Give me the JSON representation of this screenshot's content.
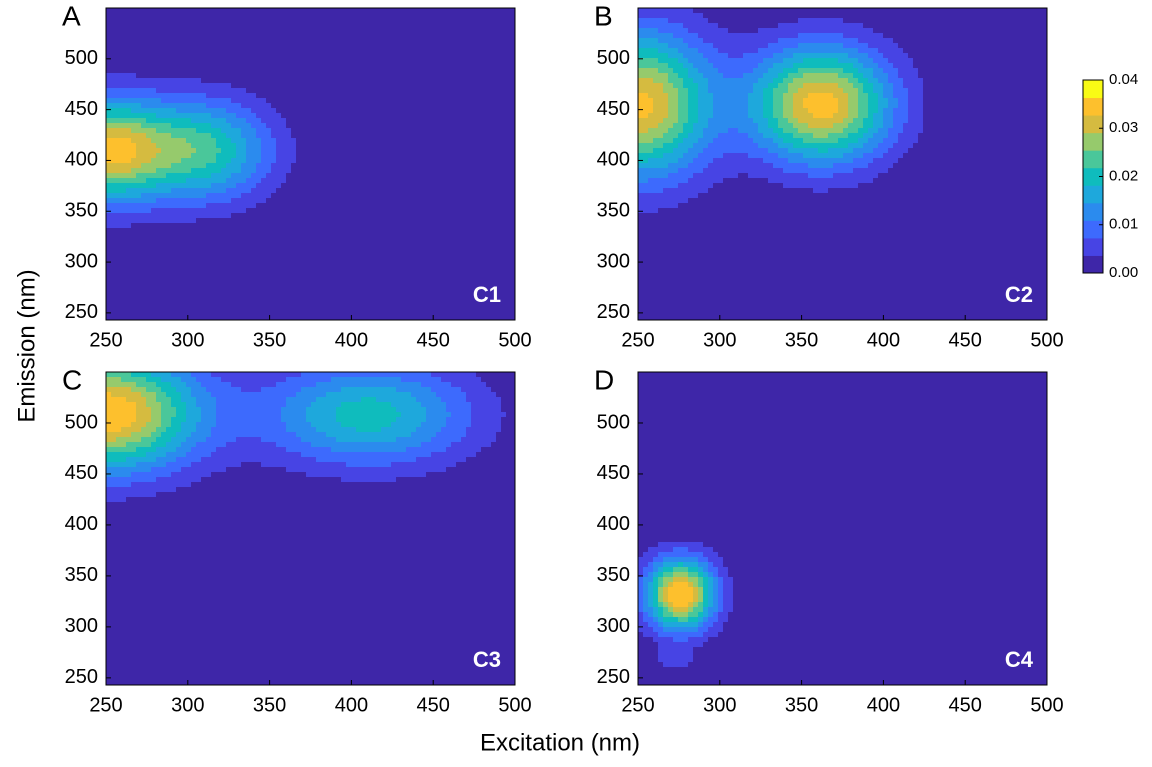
{
  "figure": {
    "ylabel": "Emission (nm)",
    "xlabel": "Excitation (nm)",
    "colorbar": {
      "lim": [
        0,
        0.04
      ],
      "ticks": [
        {
          "value": 0,
          "label": "0.00"
        },
        {
          "value": 0.01,
          "label": "0.01"
        },
        {
          "value": 0.02,
          "label": "0.02"
        },
        {
          "value": 0.03,
          "label": "0.03"
        },
        {
          "value": 0.04,
          "label": "0.04"
        }
      ],
      "colors": [
        "#3e26a8",
        "#4744e4",
        "#3d6afd",
        "#2b8bee",
        "#1ea8dc",
        "#0fbcbd",
        "#4ac79a",
        "#96ca6c",
        "#d5bb40",
        "#fdc02d",
        "#f9fb15"
      ]
    }
  },
  "chart_data": [
    {
      "type": "contour",
      "panel_label": "A",
      "component_label": "C1",
      "xlim": [
        250,
        500
      ],
      "ylim": [
        243,
        550
      ],
      "xticks": [
        250,
        300,
        350,
        400,
        450,
        500
      ],
      "yticks": [
        250,
        300,
        350,
        400,
        450,
        500
      ],
      "peaks": [
        {
          "x": 250,
          "y": 410,
          "z": 0.034,
          "sx": 25,
          "sy": 35
        },
        {
          "x": 308,
          "y": 410,
          "z": 0.025,
          "sx": 30,
          "sy": 35
        }
      ]
    },
    {
      "type": "contour",
      "panel_label": "B",
      "component_label": "C2",
      "xlim": [
        250,
        500
      ],
      "ylim": [
        243,
        550
      ],
      "xticks": [
        250,
        300,
        350,
        400,
        450,
        500
      ],
      "yticks": [
        250,
        300,
        350,
        400,
        450,
        500
      ],
      "peaks": [
        {
          "x": 252,
          "y": 455,
          "z": 0.037,
          "sx": 30,
          "sy": 50
        },
        {
          "x": 362,
          "y": 455,
          "z": 0.038,
          "sx": 30,
          "sy": 40
        }
      ]
    },
    {
      "type": "contour",
      "panel_label": "C",
      "component_label": "C3",
      "xlim": [
        250,
        500
      ],
      "ylim": [
        243,
        550
      ],
      "xticks": [
        250,
        300,
        350,
        400,
        450,
        500
      ],
      "yticks": [
        250,
        300,
        350,
        400,
        450,
        500
      ],
      "peaks": [
        {
          "x": 250,
          "y": 510,
          "z": 0.04,
          "sx": 40,
          "sy": 40
        },
        {
          "x": 410,
          "y": 508,
          "z": 0.022,
          "sx": 45,
          "sy": 35
        }
      ]
    },
    {
      "type": "contour",
      "panel_label": "D",
      "component_label": "C4",
      "xlim": [
        250,
        500
      ],
      "ylim": [
        243,
        550
      ],
      "xticks": [
        250,
        300,
        350,
        400,
        450,
        500
      ],
      "yticks": [
        250,
        300,
        350,
        400,
        450,
        500
      ],
      "peaks": [
        {
          "x": 276,
          "y": 332,
          "z": 0.04,
          "sx": 15,
          "sy": 25
        },
        {
          "x": 272,
          "y": 268,
          "z": 0.006,
          "sx": 8,
          "sy": 8
        }
      ]
    }
  ]
}
